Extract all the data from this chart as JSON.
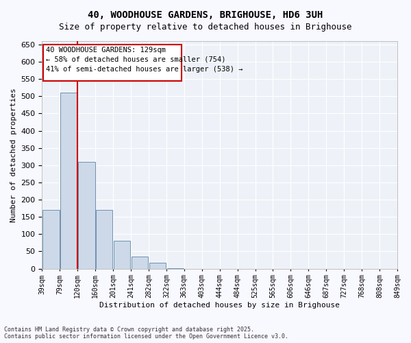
{
  "title_line1": "40, WOODHOUSE GARDENS, BRIGHOUSE, HD6 3UH",
  "title_line2": "Size of property relative to detached houses in Brighouse",
  "xlabel": "Distribution of detached houses by size in Brighouse",
  "ylabel": "Number of detached properties",
  "bins": [
    "39sqm",
    "79sqm",
    "120sqm",
    "160sqm",
    "201sqm",
    "241sqm",
    "282sqm",
    "322sqm",
    "363sqm",
    "403sqm",
    "444sqm",
    "484sqm",
    "525sqm",
    "565sqm",
    "606sqm",
    "646sqm",
    "687sqm",
    "727sqm",
    "768sqm",
    "808sqm",
    "849sqm"
  ],
  "values": [
    170,
    510,
    310,
    170,
    80,
    35,
    18,
    2,
    0,
    0,
    0,
    0,
    0,
    0,
    0,
    0,
    0,
    0,
    0,
    0
  ],
  "bar_color": "#cdd9e8",
  "bar_edge_color": "#7090b0",
  "vline_color": "#cc0000",
  "annotation_text": "40 WOODHOUSE GARDENS: 129sqm\n← 58% of detached houses are smaller (754)\n41% of semi-detached houses are larger (538) →",
  "annotation_box_color": "#cc0000",
  "annotation_text_color": "#000000",
  "ylim": [
    0,
    660
  ],
  "yticks": [
    0,
    50,
    100,
    150,
    200,
    250,
    300,
    350,
    400,
    450,
    500,
    550,
    600,
    650
  ],
  "background_color": "#eef2f8",
  "grid_color": "#ffffff",
  "footer_line1": "Contains HM Land Registry data © Crown copyright and database right 2025.",
  "footer_line2": "Contains public sector information licensed under the Open Government Licence v3.0."
}
